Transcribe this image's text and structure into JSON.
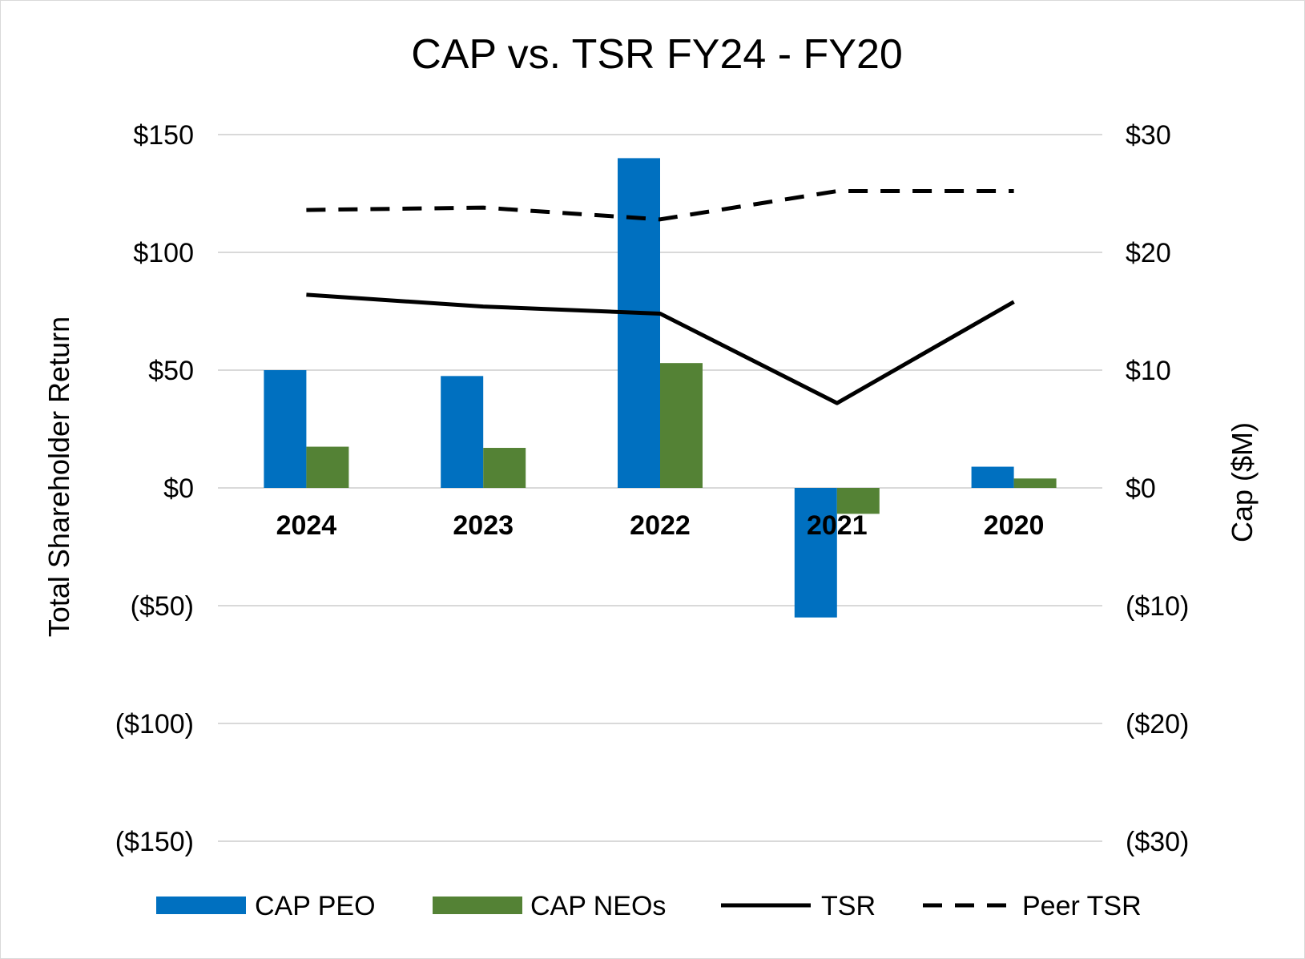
{
  "chart_data": {
    "type": "bar",
    "title": "CAP vs. TSR FY24 - FY20",
    "categories": [
      "2024",
      "2023",
      "2022",
      "2021",
      "2020"
    ],
    "ylabel": "Total Shareholder Return",
    "y2label": "Cap ($M)",
    "ylim": [
      -150,
      150
    ],
    "y2lim": [
      -30,
      30
    ],
    "yticks": [
      150,
      100,
      50,
      0,
      -50,
      -100,
      -150
    ],
    "ytick_labels": [
      "$150",
      "$100",
      "$50",
      "$0",
      "($50)",
      "($100)",
      "($150)"
    ],
    "y2ticks": [
      30,
      20,
      10,
      0,
      -10,
      -20,
      -30
    ],
    "y2tick_labels": [
      "$30",
      "$20",
      "$10",
      "$0",
      "($10)",
      "($20)",
      "($30)"
    ],
    "grid": true,
    "legend_position": "bottom",
    "series": [
      {
        "name": "CAP PEO",
        "type": "bar",
        "axis": "right",
        "color": "#0070C0",
        "values": [
          10.0,
          9.5,
          28.0,
          -11.0,
          1.8
        ]
      },
      {
        "name": "CAP NEOs",
        "type": "bar",
        "axis": "right",
        "color": "#548235",
        "values": [
          3.5,
          3.4,
          10.6,
          -2.2,
          0.8
        ]
      },
      {
        "name": "TSR",
        "type": "line",
        "axis": "left",
        "color": "#000000",
        "dash": "solid",
        "values": [
          82,
          77,
          74,
          36,
          79
        ]
      },
      {
        "name": "Peer TSR",
        "type": "line",
        "axis": "left",
        "color": "#000000",
        "dash": "dashed",
        "values": [
          118,
          119,
          114,
          126,
          126
        ]
      }
    ]
  }
}
